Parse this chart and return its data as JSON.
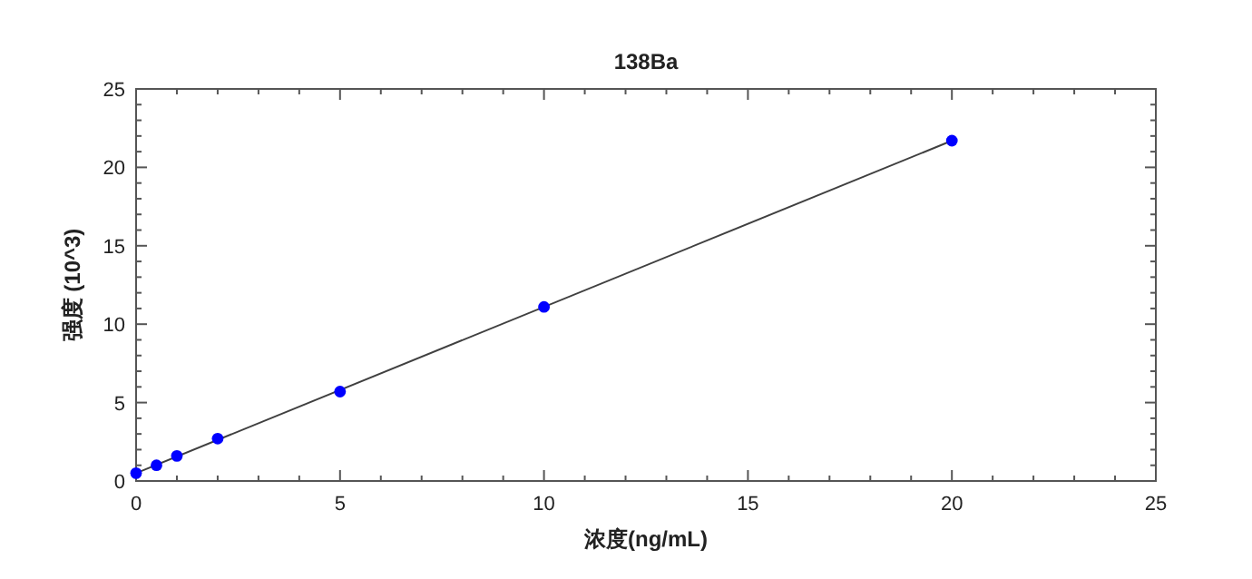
{
  "chart_data": {
    "type": "scatter",
    "title": "138Ba",
    "xlabel": "浓度(ng/mL)",
    "ylabel": "强度 (10^3)",
    "x": [
      0,
      0.5,
      1,
      2,
      5,
      10,
      20
    ],
    "series": [
      {
        "color": "#0000ff",
        "marker": "circle",
        "values": [
          0.5,
          1.0,
          1.6,
          2.7,
          5.7,
          11.1,
          21.7
        ]
      },
      {
        "type": "line",
        "color": "#404040",
        "x": [
          0,
          20
        ],
        "values": [
          0.5,
          21.7
        ]
      }
    ],
    "xlim": [
      0,
      25
    ],
    "ylim": [
      0,
      25
    ],
    "xticks": [
      0,
      5,
      10,
      15,
      20,
      25
    ],
    "yticks": [
      0,
      5,
      10,
      15,
      20,
      25
    ],
    "grid": false
  }
}
